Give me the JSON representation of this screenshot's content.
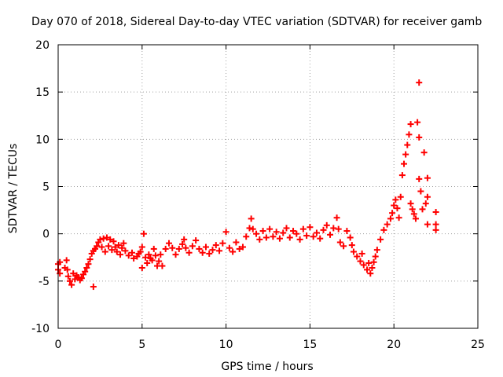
{
  "chart_data": {
    "type": "scatter",
    "title": "Day 070 of 2018, Sidereal Day-to-day VTEC variation (SDTVAR) for receiver gamb",
    "xlabel": "GPS time / hours",
    "ylabel": "SDTVAR / TECUs",
    "xlim": [
      0,
      25
    ],
    "ylim": [
      -10,
      20
    ],
    "xticks": [
      "0",
      "5",
      "10",
      "15",
      "20",
      "25"
    ],
    "yticks": [
      "-10",
      "-5",
      "0",
      "5",
      "10",
      "15",
      "20"
    ],
    "grid": true,
    "marker": "+",
    "marker_color": "#ff0000",
    "series": [
      {
        "name": "SDTVAR",
        "points": [
          [
            0.0,
            -3.2
          ],
          [
            0.0,
            -3.8
          ],
          [
            0.1,
            -4.2
          ],
          [
            0.1,
            -3.0
          ],
          [
            0.4,
            -3.6
          ],
          [
            0.5,
            -2.8
          ],
          [
            0.55,
            -3.8
          ],
          [
            0.6,
            -4.5
          ],
          [
            0.7,
            -5.0
          ],
          [
            0.8,
            -5.4
          ],
          [
            0.9,
            -4.2
          ],
          [
            1.0,
            -4.8
          ],
          [
            1.1,
            -4.4
          ],
          [
            1.2,
            -4.6
          ],
          [
            1.3,
            -4.9
          ],
          [
            1.4,
            -4.7
          ],
          [
            1.5,
            -4.3
          ],
          [
            1.6,
            -4.0
          ],
          [
            1.7,
            -3.6
          ],
          [
            1.8,
            -3.2
          ],
          [
            1.9,
            -2.7
          ],
          [
            2.0,
            -2.1
          ],
          [
            2.1,
            -1.8
          ],
          [
            2.1,
            -5.6
          ],
          [
            2.2,
            -1.6
          ],
          [
            2.3,
            -1.3
          ],
          [
            2.4,
            -0.9
          ],
          [
            2.5,
            -0.6
          ],
          [
            2.6,
            -1.4
          ],
          [
            2.7,
            -0.5
          ],
          [
            2.8,
            -1.9
          ],
          [
            2.9,
            -0.4
          ],
          [
            3.0,
            -1.3
          ],
          [
            3.1,
            -0.6
          ],
          [
            3.2,
            -1.7
          ],
          [
            3.3,
            -0.8
          ],
          [
            3.4,
            -1.4
          ],
          [
            3.5,
            -1.9
          ],
          [
            3.6,
            -1.2
          ],
          [
            3.7,
            -2.2
          ],
          [
            3.8,
            -1.5
          ],
          [
            3.9,
            -1.0
          ],
          [
            4.0,
            -1.8
          ],
          [
            4.2,
            -2.3
          ],
          [
            4.4,
            -2.0
          ],
          [
            4.5,
            -2.6
          ],
          [
            4.7,
            -2.4
          ],
          [
            4.8,
            -2.1
          ],
          [
            4.9,
            -1.9
          ],
          [
            5.0,
            -3.6
          ],
          [
            5.0,
            -1.4
          ],
          [
            5.1,
            0.0
          ],
          [
            5.2,
            -2.5
          ],
          [
            5.3,
            -3.1
          ],
          [
            5.4,
            -2.2
          ],
          [
            5.5,
            -2.6
          ],
          [
            5.6,
            -2.8
          ],
          [
            5.7,
            -1.6
          ],
          [
            5.8,
            -2.3
          ],
          [
            5.9,
            -3.4
          ],
          [
            6.0,
            -2.9
          ],
          [
            6.1,
            -2.2
          ],
          [
            6.2,
            -3.4
          ],
          [
            6.4,
            -1.6
          ],
          [
            6.6,
            -1.0
          ],
          [
            6.8,
            -1.5
          ],
          [
            7.0,
            -2.2
          ],
          [
            7.2,
            -1.6
          ],
          [
            7.4,
            -1.1
          ],
          [
            7.5,
            -0.6
          ],
          [
            7.6,
            -1.5
          ],
          [
            7.8,
            -2.0
          ],
          [
            8.0,
            -1.3
          ],
          [
            8.2,
            -0.7
          ],
          [
            8.4,
            -1.6
          ],
          [
            8.6,
            -2.0
          ],
          [
            8.8,
            -1.4
          ],
          [
            9.0,
            -2.1
          ],
          [
            9.2,
            -1.7
          ],
          [
            9.4,
            -1.2
          ],
          [
            9.6,
            -1.8
          ],
          [
            9.8,
            -1.0
          ],
          [
            10.0,
            0.2
          ],
          [
            10.2,
            -1.5
          ],
          [
            10.4,
            -1.9
          ],
          [
            10.6,
            -0.9
          ],
          [
            10.8,
            -1.6
          ],
          [
            11.0,
            -1.4
          ],
          [
            11.2,
            -0.3
          ],
          [
            11.4,
            0.6
          ],
          [
            11.5,
            1.6
          ],
          [
            11.6,
            0.5
          ],
          [
            11.8,
            0.0
          ],
          [
            12.0,
            -0.6
          ],
          [
            12.2,
            0.3
          ],
          [
            12.4,
            -0.4
          ],
          [
            12.6,
            0.5
          ],
          [
            12.8,
            -0.3
          ],
          [
            13.0,
            0.2
          ],
          [
            13.2,
            -0.5
          ],
          [
            13.4,
            0.1
          ],
          [
            13.6,
            0.6
          ],
          [
            13.8,
            -0.4
          ],
          [
            14.0,
            0.3
          ],
          [
            14.2,
            0.0
          ],
          [
            14.4,
            -0.6
          ],
          [
            14.6,
            0.5
          ],
          [
            14.8,
            -0.2
          ],
          [
            15.0,
            0.7
          ],
          [
            15.2,
            -0.3
          ],
          [
            15.4,
            0.1
          ],
          [
            15.6,
            -0.5
          ],
          [
            15.8,
            0.4
          ],
          [
            16.0,
            0.9
          ],
          [
            16.2,
            -0.1
          ],
          [
            16.4,
            0.6
          ],
          [
            16.6,
            1.7
          ],
          [
            16.7,
            0.5
          ],
          [
            16.8,
            -0.9
          ],
          [
            17.0,
            -1.3
          ],
          [
            17.2,
            0.3
          ],
          [
            17.4,
            -0.4
          ],
          [
            17.5,
            -1.2
          ],
          [
            17.6,
            -1.9
          ],
          [
            17.8,
            -2.4
          ],
          [
            18.0,
            -2.9
          ],
          [
            18.1,
            -2.1
          ],
          [
            18.2,
            -3.3
          ],
          [
            18.4,
            -3.8
          ],
          [
            18.5,
            -3.1
          ],
          [
            18.6,
            -4.2
          ],
          [
            18.7,
            -3.6
          ],
          [
            18.8,
            -3.0
          ],
          [
            18.9,
            -2.4
          ],
          [
            19.0,
            -1.7
          ],
          [
            19.2,
            -0.6
          ],
          [
            19.4,
            0.4
          ],
          [
            19.6,
            1.0
          ],
          [
            19.8,
            1.6
          ],
          [
            19.9,
            2.2
          ],
          [
            20.0,
            3.0
          ],
          [
            20.1,
            3.6
          ],
          [
            20.2,
            2.7
          ],
          [
            20.3,
            1.7
          ],
          [
            20.4,
            3.9
          ],
          [
            20.5,
            6.2
          ],
          [
            20.6,
            7.4
          ],
          [
            20.7,
            8.4
          ],
          [
            20.8,
            9.4
          ],
          [
            20.9,
            10.5
          ],
          [
            21.0,
            11.6
          ],
          [
            21.0,
            3.2
          ],
          [
            21.1,
            2.6
          ],
          [
            21.2,
            2.1
          ],
          [
            21.3,
            1.6
          ],
          [
            21.4,
            11.8
          ],
          [
            21.5,
            16.0
          ],
          [
            21.5,
            10.2
          ],
          [
            21.5,
            5.8
          ],
          [
            21.6,
            4.5
          ],
          [
            21.7,
            2.6
          ],
          [
            21.8,
            8.6
          ],
          [
            21.9,
            3.2
          ],
          [
            22.0,
            5.9
          ],
          [
            22.0,
            3.9
          ],
          [
            22.0,
            1.0
          ],
          [
            22.5,
            2.3
          ],
          [
            22.5,
            1.0
          ],
          [
            22.5,
            0.4
          ]
        ]
      }
    ]
  }
}
